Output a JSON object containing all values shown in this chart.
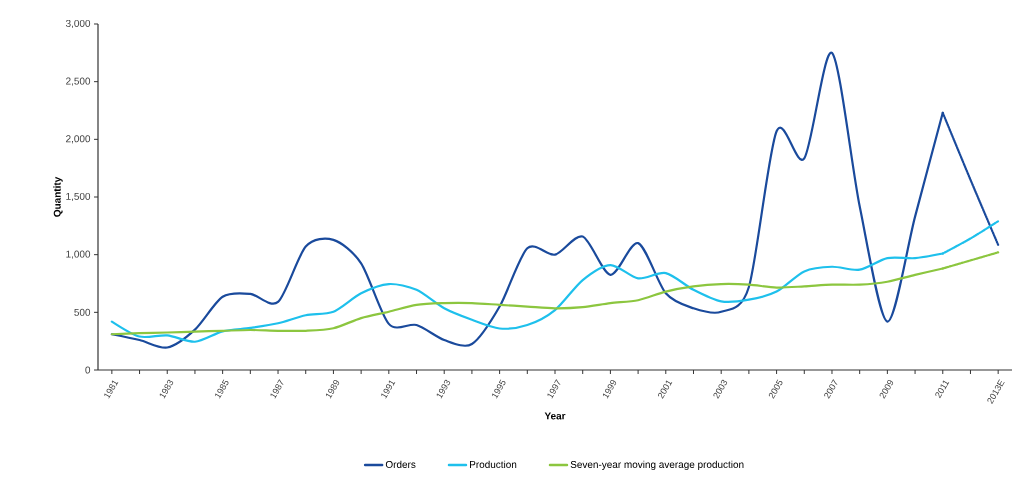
{
  "chart_data": {
    "type": "line",
    "xlabel": "Year",
    "ylabel": "Quantity",
    "categories": [
      "1981",
      null,
      "1983",
      null,
      "1985",
      null,
      "1987",
      null,
      "1989",
      null,
      "1991",
      null,
      "1993",
      null,
      "1995",
      null,
      "1997",
      null,
      "1999",
      null,
      "2001",
      null,
      "2003",
      null,
      "2005",
      null,
      "2007",
      null,
      "2009",
      null,
      "2011",
      null,
      "2013E"
    ],
    "series": [
      {
        "name": "Orders",
        "color": "#1a4a9c",
        "line_style": "solid",
        "values": [
          310,
          260,
          195,
          350,
          635,
          660,
          590,
          1070,
          1128,
          925,
          400,
          390,
          260,
          225,
          550,
          1055,
          1000,
          1157,
          825,
          1100,
          665,
          535,
          505,
          720,
          2070,
          1835,
          2750,
          1420,
          420,
          1330,
          2230,
          null,
          null
        ]
      },
      {
        "name": "Production",
        "color": "#1ec0ec",
        "line_style": "solid",
        "values": [
          420,
          290,
          300,
          245,
          335,
          365,
          405,
          475,
          505,
          665,
          745,
          695,
          535,
          435,
          360,
          390,
          520,
          780,
          910,
          795,
          840,
          695,
          595,
          610,
          680,
          855,
          895,
          870,
          970,
          970,
          1010,
          null,
          null
        ]
      },
      {
        "name": "Seven-year moving average production",
        "color": "#8cc63f",
        "line_style": "solid",
        "values": [
          310,
          320,
          325,
          333,
          340,
          347,
          340,
          340,
          362,
          450,
          505,
          565,
          580,
          580,
          565,
          550,
          535,
          545,
          580,
          605,
          680,
          725,
          745,
          740,
          715,
          725,
          740,
          740,
          765,
          825,
          880,
          null,
          null
        ]
      },
      {
        "color": "#1a4a9c",
        "line_style": "dotted",
        "values": [
          null,
          null,
          null,
          null,
          null,
          null,
          null,
          null,
          null,
          null,
          null,
          null,
          null,
          null,
          null,
          null,
          null,
          null,
          null,
          null,
          null,
          null,
          null,
          null,
          null,
          null,
          null,
          null,
          null,
          null,
          2230,
          1650,
          1085
        ]
      },
      {
        "color": "#1ec0ec",
        "line_style": "dotted",
        "values": [
          null,
          null,
          null,
          null,
          null,
          null,
          null,
          null,
          null,
          null,
          null,
          null,
          null,
          null,
          null,
          null,
          null,
          null,
          null,
          null,
          null,
          null,
          null,
          null,
          null,
          null,
          null,
          null,
          null,
          null,
          1010,
          1140,
          1290
        ]
      },
      {
        "color": "#8cc63f",
        "line_style": "dotted",
        "values": [
          null,
          null,
          null,
          null,
          null,
          null,
          null,
          null,
          null,
          null,
          null,
          null,
          null,
          null,
          null,
          null,
          null,
          null,
          null,
          null,
          null,
          null,
          null,
          null,
          null,
          null,
          null,
          null,
          null,
          null,
          880,
          950,
          1020
        ]
      }
    ],
    "ylim": [
      0,
      3000
    ],
    "yticks": [
      0,
      500,
      {
        "value": 1000,
        "label": "1,000"
      },
      {
        "value": 1500,
        "label": "1,500"
      },
      {
        "value": 2000,
        "label": "2,000"
      },
      {
        "value": 2500,
        "label": "2,500"
      },
      {
        "value": 3000,
        "label": "3,000"
      }
    ],
    "grid": false,
    "legend": "bottom",
    "marker": "none"
  }
}
